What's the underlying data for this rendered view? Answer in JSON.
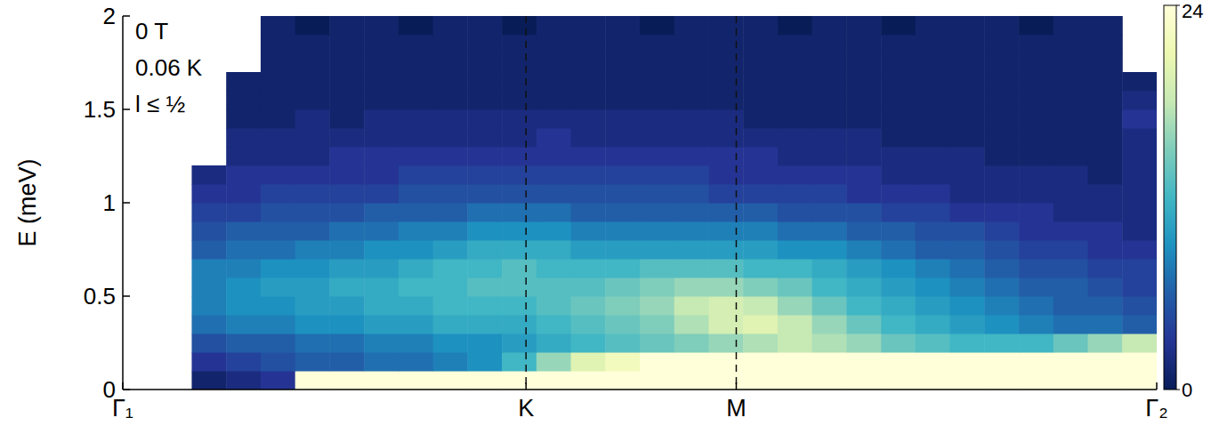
{
  "chart_data": {
    "type": "heatmap",
    "y_label": "E (meV)",
    "annotations": [
      "0 T",
      "0.06 K",
      "l ≤ ½"
    ],
    "xlim": [
      0,
      30
    ],
    "xticks": [
      {
        "value": 0,
        "label": "Γ₁"
      },
      {
        "value": 11.7,
        "label": "K"
      },
      {
        "value": 17.8,
        "label": "M"
      },
      {
        "value": 30,
        "label": "Γ₂"
      }
    ],
    "ylim": [
      0,
      2
    ],
    "yticks": [
      0,
      0.5,
      1,
      1.5,
      2
    ],
    "x_edges": [
      0,
      1,
      2,
      3,
      4,
      5,
      6,
      7,
      8,
      9,
      10,
      11,
      12,
      13,
      14,
      15,
      16,
      17,
      18,
      19,
      20,
      21,
      22,
      23,
      24,
      25,
      26,
      27,
      28,
      29,
      30
    ],
    "y_edges": [
      0,
      0.1,
      0.2,
      0.3,
      0.4,
      0.5,
      0.6,
      0.7,
      0.8,
      0.9,
      1,
      1.1,
      1.2,
      1.3,
      1.4,
      1.5,
      1.6,
      1.7,
      1.8,
      1.9,
      2
    ],
    "cells": [
      [
        null,
        null,
        1,
        2,
        3,
        24,
        24,
        24,
        24,
        24,
        24,
        24,
        24,
        24,
        24,
        24,
        24,
        24,
        24,
        24,
        24,
        24,
        24,
        24,
        24,
        24,
        24,
        24,
        24,
        24
      ],
      [
        null,
        null,
        3,
        4,
        5,
        6,
        6,
        7,
        7,
        8,
        9,
        12,
        16,
        20,
        22,
        24,
        24,
        24,
        24,
        24,
        24,
        24,
        24,
        24,
        24,
        24,
        24,
        24,
        24,
        24
      ],
      [
        null,
        null,
        5,
        6,
        6,
        7,
        7,
        8,
        8,
        9,
        9,
        10,
        11,
        12,
        13,
        14,
        15,
        16,
        17,
        18,
        17,
        16,
        14,
        13,
        12,
        12,
        12,
        14,
        16,
        18
      ],
      [
        null,
        null,
        7,
        8,
        8,
        9,
        9,
        10,
        10,
        11,
        11,
        11,
        12,
        13,
        14,
        15,
        17,
        19,
        20,
        18,
        16,
        14,
        12,
        11,
        10,
        9,
        8,
        7,
        7,
        6
      ],
      [
        null,
        null,
        8,
        9,
        9,
        10,
        10,
        11,
        11,
        12,
        12,
        12,
        13,
        14,
        15,
        16,
        18,
        19,
        18,
        16,
        14,
        12,
        11,
        10,
        9,
        8,
        7,
        6,
        6,
        5
      ],
      [
        null,
        null,
        8,
        9,
        10,
        10,
        11,
        11,
        12,
        12,
        13,
        13,
        13,
        13,
        14,
        15,
        16,
        16,
        15,
        14,
        12,
        11,
        10,
        9,
        8,
        7,
        6,
        6,
        5,
        4
      ],
      [
        null,
        null,
        8,
        8,
        9,
        9,
        10,
        10,
        11,
        12,
        12,
        13,
        12,
        12,
        12,
        13,
        13,
        13,
        12,
        12,
        11,
        10,
        9,
        8,
        7,
        6,
        5,
        5,
        4,
        4
      ],
      [
        null,
        null,
        6,
        7,
        7,
        8,
        8,
        9,
        9,
        10,
        11,
        11,
        11,
        10,
        10,
        10,
        10,
        10,
        10,
        9,
        9,
        8,
        7,
        6,
        6,
        5,
        4,
        4,
        3,
        3
      ],
      [
        null,
        null,
        5,
        6,
        6,
        6,
        7,
        7,
        8,
        8,
        9,
        9,
        9,
        8,
        8,
        8,
        8,
        8,
        8,
        7,
        7,
        6,
        6,
        5,
        5,
        4,
        3,
        3,
        3,
        2
      ],
      [
        null,
        null,
        4,
        4,
        5,
        5,
        5,
        6,
        6,
        6,
        7,
        7,
        7,
        6,
        6,
        6,
        6,
        6,
        6,
        5,
        5,
        5,
        4,
        4,
        3,
        3,
        3,
        2,
        2,
        2
      ],
      [
        null,
        null,
        3,
        3,
        4,
        4,
        4,
        4,
        5,
        5,
        5,
        5,
        5,
        5,
        5,
        5,
        5,
        4,
        4,
        4,
        4,
        3,
        3,
        3,
        2,
        2,
        2,
        2,
        2,
        2
      ],
      [
        null,
        null,
        2,
        3,
        3,
        3,
        3,
        3,
        4,
        4,
        4,
        4,
        4,
        4,
        4,
        4,
        4,
        3,
        3,
        3,
        3,
        3,
        2,
        2,
        2,
        2,
        2,
        2,
        1,
        2
      ],
      [
        null,
        null,
        null,
        2,
        2,
        2,
        3,
        3,
        3,
        3,
        3,
        3,
        3,
        3,
        3,
        3,
        3,
        3,
        3,
        2,
        2,
        2,
        2,
        2,
        2,
        1,
        1,
        1,
        1,
        2
      ],
      [
        null,
        null,
        null,
        2,
        2,
        2,
        2,
        2,
        2,
        2,
        2,
        2,
        3,
        2,
        2,
        2,
        2,
        2,
        2,
        2,
        2,
        2,
        1,
        1,
        1,
        1,
        1,
        1,
        1,
        2
      ],
      [
        null,
        null,
        null,
        1,
        1,
        2,
        1,
        2,
        2,
        2,
        2,
        2,
        2,
        2,
        2,
        2,
        2,
        2,
        1,
        1,
        1,
        1,
        1,
        1,
        1,
        1,
        1,
        1,
        1,
        3
      ],
      [
        null,
        null,
        null,
        1,
        1,
        1,
        1,
        1,
        1,
        1,
        1,
        1,
        1,
        1,
        1,
        1,
        1,
        1,
        1,
        1,
        1,
        1,
        1,
        1,
        1,
        1,
        1,
        1,
        1,
        2
      ],
      [
        null,
        null,
        null,
        1,
        1,
        1,
        1,
        1,
        1,
        1,
        1,
        1,
        1,
        1,
        1,
        1,
        1,
        1,
        1,
        1,
        1,
        1,
        1,
        1,
        1,
        1,
        1,
        1,
        1,
        1
      ],
      [
        null,
        null,
        null,
        null,
        1,
        1,
        1,
        1,
        1,
        1,
        1,
        1,
        1,
        1,
        1,
        1,
        1,
        1,
        1,
        1,
        1,
        1,
        1,
        1,
        1,
        1,
        1,
        1,
        1,
        null
      ],
      [
        null,
        null,
        null,
        null,
        1,
        1,
        1,
        1,
        1,
        1,
        1,
        1,
        1,
        1,
        1,
        1,
        1,
        1,
        1,
        1,
        1,
        1,
        1,
        1,
        1,
        1,
        1,
        1,
        1,
        null
      ],
      [
        null,
        null,
        null,
        null,
        1,
        0,
        1,
        1,
        0,
        1,
        1,
        0,
        1,
        1,
        1,
        0,
        1,
        1,
        1,
        0,
        1,
        1,
        0,
        1,
        1,
        1,
        0,
        1,
        1,
        null
      ]
    ],
    "color_range": [
      0,
      24
    ],
    "color_ticks": [
      0,
      24
    ]
  }
}
